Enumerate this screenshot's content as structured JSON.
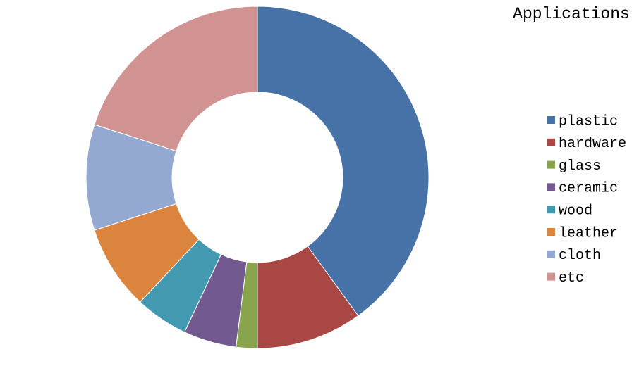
{
  "chart_data": {
    "type": "donut",
    "title": "Applications",
    "categories": [
      "plastic",
      "hardware",
      "glass",
      "ceramic",
      "wood",
      "leather",
      "cloth",
      "etc"
    ],
    "values": [
      40,
      10,
      2,
      5,
      5,
      8,
      10,
      20
    ],
    "colors": [
      "#4672a8",
      "#a94744",
      "#88a44c",
      "#725a90",
      "#4399af",
      "#db843d",
      "#94a9d2",
      "#d09392"
    ]
  }
}
